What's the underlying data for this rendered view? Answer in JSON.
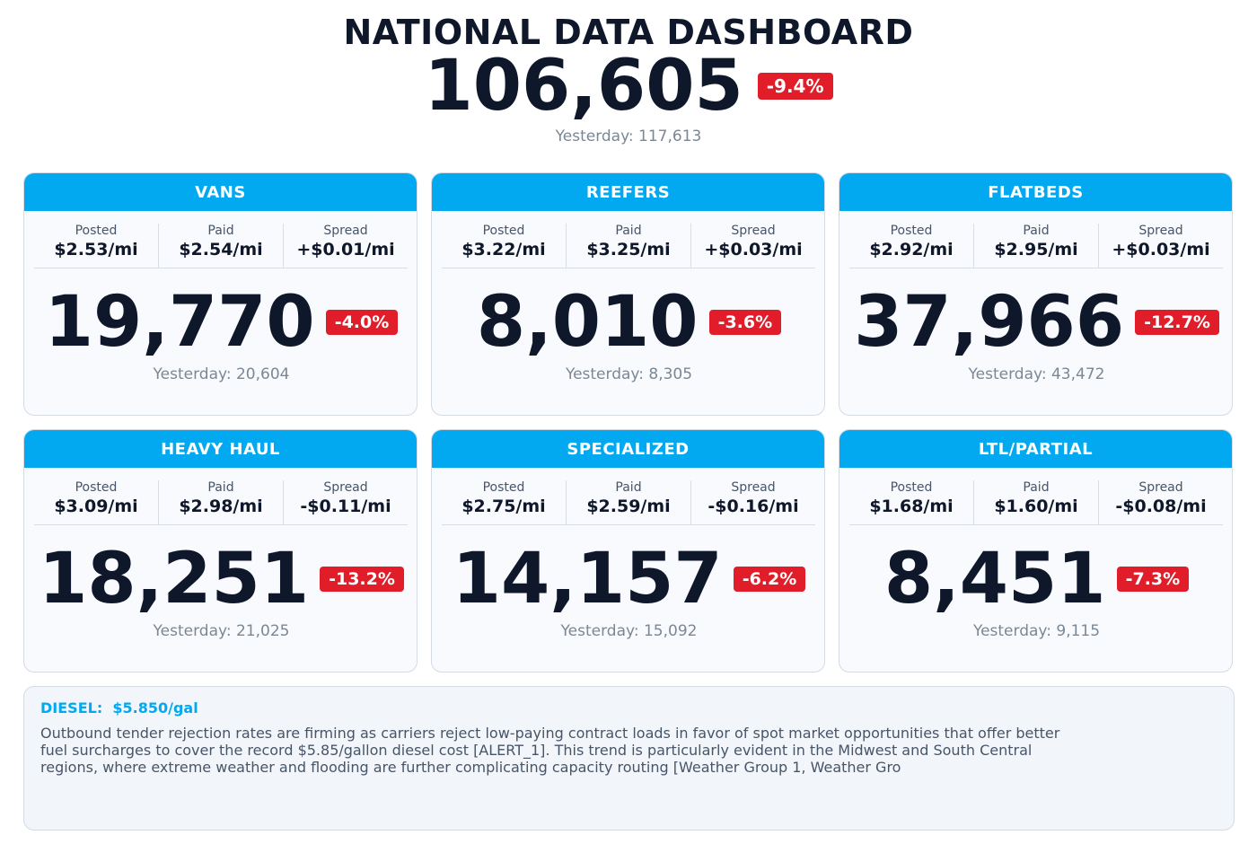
{
  "header": {
    "title": "NATIONAL DATA DASHBOARD",
    "total": "106,605",
    "change": "-9.4%",
    "yesterday": "Yesterday: 117,613"
  },
  "metric_labels": {
    "posted": "Posted",
    "paid": "Paid",
    "spread": "Spread"
  },
  "cards": [
    {
      "name": "VANS",
      "posted": "$2.53/mi",
      "paid": "$2.54/mi",
      "spread": "+$0.01/mi",
      "count": "19,770",
      "change": "-4.0%",
      "yesterday": "Yesterday: 20,604"
    },
    {
      "name": "REEFERS",
      "posted": "$3.22/mi",
      "paid": "$3.25/mi",
      "spread": "+$0.03/mi",
      "count": "8,010",
      "change": "-3.6%",
      "yesterday": "Yesterday: 8,305"
    },
    {
      "name": "FLATBEDS",
      "posted": "$2.92/mi",
      "paid": "$2.95/mi",
      "spread": "+$0.03/mi",
      "count": "37,966",
      "change": "-12.7%",
      "yesterday": "Yesterday: 43,472"
    },
    {
      "name": "HEAVY HAUL",
      "posted": "$3.09/mi",
      "paid": "$2.98/mi",
      "spread": "-$0.11/mi",
      "count": "18,251",
      "change": "-13.2%",
      "yesterday": "Yesterday: 21,025"
    },
    {
      "name": "SPECIALIZED",
      "posted": "$2.75/mi",
      "paid": "$2.59/mi",
      "spread": "-$0.16/mi",
      "count": "14,157",
      "change": "-6.2%",
      "yesterday": "Yesterday: 15,092"
    },
    {
      "name": "LTL/PARTIAL",
      "posted": "$1.68/mi",
      "paid": "$1.60/mi",
      "spread": "-$0.08/mi",
      "count": "8,451",
      "change": "-7.3%",
      "yesterday": "Yesterday: 9,115"
    }
  ],
  "diesel": {
    "label": "DIESEL:  $5.850/gal",
    "text": "Outbound tender rejection rates are firming as carriers reject low-paying contract loads in favor of spot market opportunities that offer better fuel surcharges to cover the record $5.85/gallon diesel cost [ALERT_1]. This trend is particularly evident in the Midwest and South Central regions, where extreme weather and flooding are further complicating capacity routing [Weather Group 1, Weather Gro"
  },
  "colors": {
    "accent": "#03a9f0",
    "negative_badge": "#e11d2a",
    "text_dark": "#0f172a",
    "text_muted": "#7b8794"
  }
}
